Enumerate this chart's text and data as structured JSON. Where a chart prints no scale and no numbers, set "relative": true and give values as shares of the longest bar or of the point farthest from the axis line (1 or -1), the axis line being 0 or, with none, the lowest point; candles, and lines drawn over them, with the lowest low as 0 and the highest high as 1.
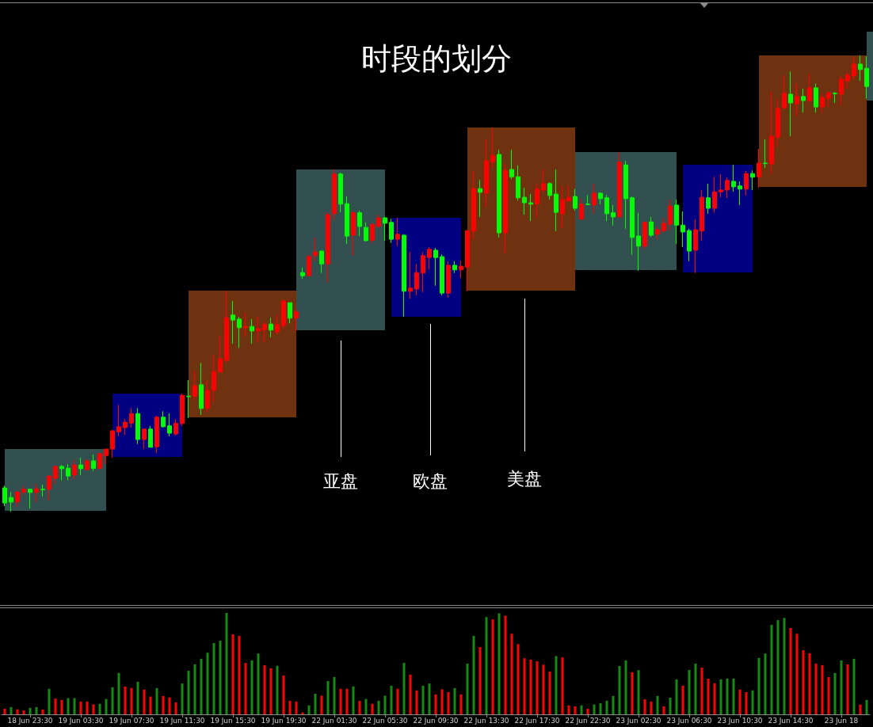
{
  "chart_data": [
    {
      "type": "candlestick",
      "title": "时段的划分",
      "relative": true,
      "tick_labels": false,
      "annotations": [
        "亚盘",
        "欧盘",
        "美盘"
      ],
      "categories": [
        null,
        null,
        null,
        null,
        null,
        null,
        null,
        null,
        null,
        null,
        null,
        null,
        null,
        null,
        null,
        null,
        null,
        null,
        null,
        null,
        null,
        null,
        null,
        null,
        null,
        null,
        null,
        null,
        null,
        null,
        null,
        null,
        null,
        null,
        null,
        null,
        null,
        null,
        null,
        null,
        null,
        null,
        null,
        null,
        null,
        null,
        null,
        null,
        null,
        null,
        null,
        null,
        null,
        null,
        null,
        null,
        null,
        null,
        null,
        null,
        null,
        null,
        null,
        null,
        null,
        null,
        null,
        null,
        null,
        null,
        null,
        null,
        null,
        null,
        null,
        null,
        null,
        null,
        null,
        null,
        null,
        null,
        null,
        null,
        null,
        null,
        null,
        null,
        null,
        null,
        null,
        null,
        null,
        null,
        null,
        null,
        null,
        null,
        null,
        null,
        null,
        null,
        null,
        null,
        null,
        null,
        null,
        null,
        null,
        null,
        null,
        null,
        null,
        null,
        null,
        null,
        null,
        null,
        null,
        null,
        null,
        null,
        null,
        null,
        null,
        null,
        null,
        null,
        null,
        null,
        null,
        null,
        null,
        null,
        null,
        null,
        null
      ],
      "ohlc": [
        [
          0.052,
          0.057,
          0.012,
          0.019
        ],
        [
          0.031,
          0.043,
          0,
          0.021
        ],
        [
          0.021,
          0.043,
          0.01,
          0.043
        ],
        [
          0.043,
          0.056,
          0.036,
          0.049
        ],
        [
          0.049,
          0.049,
          0.007,
          0.042
        ],
        [
          0.042,
          0.061,
          0.021,
          0.05
        ],
        [
          0.049,
          0.059,
          0.033,
          0.048
        ],
        [
          0.049,
          0.08,
          0.024,
          0.078
        ],
        [
          0.073,
          0.101,
          0.061,
          0.099
        ],
        [
          0.099,
          0.102,
          0.068,
          0.094
        ],
        [
          0.095,
          0.104,
          0.069,
          0.078
        ],
        [
          0.08,
          0.113,
          0.071,
          0.102
        ],
        [
          0.102,
          0.118,
          0.08,
          0.094
        ],
        [
          0.092,
          0.115,
          0.09,
          0.111
        ],
        [
          0.111,
          0.125,
          0.089,
          0.095
        ],
        [
          0.095,
          0.128,
          0.092,
          0.127
        ],
        [
          0.123,
          0.137,
          0.104,
          0.137
        ],
        [
          0.137,
          0.179,
          0.118,
          0.177
        ],
        [
          0.175,
          0.234,
          0.165,
          0.186
        ],
        [
          0.184,
          0.203,
          0.168,
          0.196
        ],
        [
          0.194,
          0.227,
          0.184,
          0.215
        ],
        [
          0.215,
          0.227,
          0.148,
          0.158
        ],
        [
          0.158,
          0.181,
          0.137,
          0.181
        ],
        [
          0.181,
          0.188,
          0.141,
          0.141
        ],
        [
          0.142,
          0.21,
          0.128,
          0.207
        ],
        [
          0.207,
          0.22,
          0.184,
          0.186
        ],
        [
          0.188,
          0.215,
          0.165,
          0.172
        ],
        [
          0.17,
          0.203,
          0.167,
          0.194
        ],
        [
          0.193,
          0.259,
          0.188,
          0.255
        ],
        [
          0.253,
          0.288,
          0.205,
          0.252
        ],
        [
          0.253,
          0.309,
          0.245,
          0.276
        ],
        [
          0.278,
          0.326,
          0.212,
          0.226
        ],
        [
          0.227,
          0.288,
          0.219,
          0.266
        ],
        [
          0.266,
          0.344,
          0.241,
          0.307
        ],
        [
          0.306,
          0.385,
          0.306,
          0.335
        ],
        [
          0.332,
          0.484,
          0.326,
          0.425
        ],
        [
          0.431,
          0.462,
          0.368,
          0.42
        ],
        [
          0.422,
          0.427,
          0.359,
          0.403
        ],
        [
          0.403,
          0.436,
          0.384,
          0.406
        ],
        [
          0.406,
          0.422,
          0.368,
          0.396
        ],
        [
          0.396,
          0.427,
          0.372,
          0.401
        ],
        [
          0.399,
          0.417,
          0.372,
          0.41
        ],
        [
          0.411,
          0.425,
          0.382,
          0.398
        ],
        [
          0.394,
          0.431,
          0.387,
          0.41
        ],
        [
          0.408,
          0.464,
          0.401,
          0.462
        ],
        [
          0.458,
          0.458,
          0.413,
          0.424
        ],
        [
          0.424,
          0.444,
          0.396,
          0.438
        ],
        [
          0.524,
          0.535,
          0.51,
          0.517
        ],
        [
          0.517,
          0.563,
          0.516,
          0.559
        ],
        [
          0.561,
          0.601,
          0.549,
          0.569
        ],
        [
          0.571,
          0.573,
          0.523,
          0.543
        ],
        [
          0.543,
          0.656,
          0.502,
          0.651
        ],
        [
          0.653,
          0.75,
          0.639,
          0.74
        ],
        [
          0.74,
          0.743,
          0.656,
          0.674
        ],
        [
          0.675,
          0.691,
          0.587,
          0.604
        ],
        [
          0.606,
          0.66,
          0.561,
          0.655
        ],
        [
          0.655,
          0.66,
          0.604,
          0.625
        ],
        [
          0.623,
          0.634,
          0.592,
          0.594
        ],
        [
          0.595,
          0.63,
          0.589,
          0.63
        ],
        [
          0.625,
          0.651,
          0.622,
          0.644
        ],
        [
          0.644,
          0.646,
          0.594,
          0.632
        ],
        [
          0.634,
          0.642,
          0.589,
          0.597
        ],
        [
          0.597,
          0.644,
          0.582,
          0.608
        ],
        [
          0.606,
          0.608,
          0.427,
          0.483
        ],
        [
          0.483,
          0.569,
          0.467,
          0.49
        ],
        [
          0.488,
          0.543,
          0.474,
          0.524
        ],
        [
          0.523,
          0.569,
          0.481,
          0.561
        ],
        [
          0.557,
          0.58,
          0.53,
          0.575
        ],
        [
          0.573,
          0.578,
          0.495,
          0.557
        ],
        [
          0.559,
          0.564,
          0.474,
          0.479
        ],
        [
          0.479,
          0.549,
          0.469,
          0.54
        ],
        [
          0.54,
          0.549,
          0.523,
          0.53
        ],
        [
          0.53,
          0.55,
          0.512,
          0.538
        ],
        [
          0.536,
          0.616,
          0.483,
          0.616
        ],
        [
          0.615,
          0.747,
          0.597,
          0.708
        ],
        [
          0.708,
          0.727,
          0.646,
          0.7
        ],
        [
          0.698,
          0.816,
          0.668,
          0.769
        ],
        [
          0.767,
          0.842,
          0.753,
          0.781
        ],
        [
          0.783,
          0.793,
          0.601,
          0.611
        ],
        [
          0.611,
          0.762,
          0.566,
          0.748
        ],
        [
          0.75,
          0.793,
          0.729,
          0.734
        ],
        [
          0.734,
          0.759,
          0.682,
          0.688
        ],
        [
          0.689,
          0.71,
          0.651,
          0.677
        ],
        [
          0.677,
          0.696,
          0.637,
          0.674
        ],
        [
          0.674,
          0.719,
          0.644,
          0.707
        ],
        [
          0.705,
          0.75,
          0.701,
          0.719
        ],
        [
          0.719,
          0.722,
          0.684,
          0.693
        ],
        [
          0.696,
          0.75,
          0.615,
          0.656
        ],
        [
          0.653,
          0.714,
          0.622,
          0.684
        ],
        [
          0.681,
          0.715,
          0.681,
          0.689
        ],
        [
          0.691,
          0.707,
          0.66,
          0.665
        ],
        [
          0.641,
          0.686,
          0.641,
          0.674
        ],
        [
          0.674,
          0.694,
          0.672,
          0.673
        ],
        [
          0.672,
          0.719,
          0.653,
          0.698
        ],
        [
          0.698,
          0.7,
          0.674,
          0.686
        ],
        [
          0.688,
          0.694,
          0.637,
          0.653
        ],
        [
          0.655,
          0.672,
          0.627,
          0.646
        ],
        [
          0.646,
          0.788,
          0.646,
          0.766
        ],
        [
          0.76,
          0.769,
          0.62,
          0.686
        ],
        [
          0.688,
          0.691,
          0.563,
          0.601
        ],
        [
          0.604,
          0.655,
          0.528,
          0.582
        ],
        [
          0.582,
          0.635,
          0.576,
          0.634
        ],
        [
          0.635,
          0.646,
          0.602,
          0.606
        ],
        [
          0.608,
          0.625,
          0.597,
          0.618
        ],
        [
          0.616,
          0.644,
          0.611,
          0.632
        ],
        [
          0.63,
          0.684,
          0.616,
          0.67
        ],
        [
          0.672,
          0.684,
          0.587,
          0.628
        ],
        [
          0.628,
          0.658,
          0.58,
          0.613
        ],
        [
          0.616,
          0.62,
          0.549,
          0.571
        ],
        [
          0.573,
          0.641,
          0.523,
          0.618
        ],
        [
          0.615,
          0.705,
          0.594,
          0.689
        ],
        [
          0.688,
          0.719,
          0.653,
          0.665
        ],
        [
          0.665,
          0.734,
          0.655,
          0.701
        ],
        [
          0.701,
          0.74,
          0.689,
          0.705
        ],
        [
          0.705,
          0.733,
          0.688,
          0.726
        ],
        [
          0.724,
          0.76,
          0.701,
          0.712
        ],
        [
          0.714,
          0.724,
          0.672,
          0.707
        ],
        [
          0.707,
          0.747,
          0.693,
          0.741
        ],
        [
          0.741,
          0.748,
          0.705,
          0.733
        ],
        [
          0.734,
          0.795,
          0.71,
          0.764
        ],
        [
          0.764,
          0.816,
          0.753,
          0.763
        ],
        [
          0.762,
          0.92,
          0.741,
          0.823
        ],
        [
          0.821,
          0.905,
          0.799,
          0.884
        ],
        [
          0.885,
          0.957,
          0.882,
          0.917
        ],
        [
          0.915,
          0.965,
          0.823,
          0.896
        ],
        [
          0.894,
          0.939,
          0.866,
          0.91
        ],
        [
          0.91,
          0.927,
          0.875,
          0.901
        ],
        [
          0.901,
          0.96,
          0.898,
          0.929
        ],
        [
          0.929,
          0.938,
          0.875,
          0.887
        ],
        [
          0.887,
          0.917,
          0.875,
          0.908
        ],
        [
          0.906,
          0.92,
          0.887,
          0.918
        ],
        [
          0.917,
          0.92,
          0.896,
          0.916
        ],
        [
          0.915,
          0.955,
          0.891,
          0.948
        ],
        [
          0.944,
          0.964,
          0.927,
          0.957
        ],
        [
          0.955,
          0.997,
          0.946,
          0.981
        ],
        [
          0.981,
          1,
          0.944,
          0.969
        ],
        [
          0.972,
          0.998,
          0.905,
          0.932
        ]
      ],
      "colors": [
        "#00ff00",
        "#00ff00",
        "#ff0000",
        "#ff0000",
        "#00ff00",
        "#ff0000",
        "#00ff00",
        "#ff0000",
        "#ff0000",
        "#00ff00",
        "#00ff00",
        "#ff0000",
        "#00ff00",
        "#ff0000",
        "#00ff00",
        "#ff0000",
        "#ff0000",
        "#ff0000",
        "#ff0000",
        "#ff0000",
        "#ff0000",
        "#00ff00",
        "#ff0000",
        "#00ff00",
        "#ff0000",
        "#00ff00",
        "#00ff00",
        "#ff0000",
        "#ff0000",
        "#00ff00",
        "#ff0000",
        "#00ff00",
        "#ff0000",
        "#ff0000",
        "#ff0000",
        "#ff0000",
        "#00ff00",
        "#00ff00",
        "#ff0000",
        "#00ff00",
        "#ff0000",
        "#ff0000",
        "#00ff00",
        "#ff0000",
        "#ff0000",
        "#00ff00",
        "#ff0000",
        "#00ff00",
        "#ff0000",
        "#ff0000",
        "#00ff00",
        "#ff0000",
        "#ff0000",
        "#00ff00",
        "#00ff00",
        "#ff0000",
        "#00ff00",
        "#00ff00",
        "#ff0000",
        "#ff0000",
        "#00ff00",
        "#00ff00",
        "#ff0000",
        "#00ff00",
        "#ff0000",
        "#ff0000",
        "#ff0000",
        "#ff0000",
        "#00ff00",
        "#00ff00",
        "#ff0000",
        "#00ff00",
        "#ff0000",
        "#ff0000",
        "#ff0000",
        "#00ff00",
        "#ff0000",
        "#ff0000",
        "#00ff00",
        "#ff0000",
        "#00ff00",
        "#00ff00",
        "#00ff00",
        "#00ff00",
        "#ff0000",
        "#ff0000",
        "#00ff00",
        "#00ff00",
        "#ff0000",
        "#ff0000",
        "#00ff00",
        "#ff0000",
        "#00ff00",
        "#ff0000",
        "#00ff00",
        "#00ff00",
        "#00ff00",
        "#ff0000",
        "#00ff00",
        "#00ff00",
        "#00ff00",
        "#ff0000",
        "#00ff00",
        "#ff0000",
        "#ff0000",
        "#ff0000",
        "#00ff00",
        "#00ff00",
        "#00ff00",
        "#ff0000",
        "#ff0000",
        "#00ff00",
        "#ff0000",
        "#ff0000",
        "#ff0000",
        "#00ff00",
        "#00ff00",
        "#ff0000",
        "#00ff00",
        "#ff0000",
        "#00ff00",
        "#ff0000",
        "#ff0000",
        "#ff0000",
        "#00ff00",
        "#ff0000",
        "#00ff00",
        "#ff0000",
        "#00ff00",
        "#ff0000",
        "#ff0000",
        "#00ff00",
        "#ff0000",
        "#ff0000",
        "#ff0000",
        "#00ff00",
        "#00ff00"
      ]
    },
    {
      "type": "bar",
      "relative": true,
      "tick_labels": "x",
      "categories": [
        null,
        null,
        null,
        null,
        "18 Jun 23:30",
        null,
        null,
        null,
        null,
        null,
        null,
        null,
        "19 Jun 03:30",
        null,
        null,
        null,
        null,
        null,
        null,
        null,
        "19 Jun 07:30",
        null,
        null,
        null,
        null,
        null,
        null,
        null,
        "19 Jun 11:30",
        null,
        null,
        null,
        null,
        null,
        null,
        null,
        "19 Jun 15:30",
        null,
        null,
        null,
        null,
        null,
        null,
        null,
        "19 Jun 19:30",
        null,
        null,
        null,
        null,
        null,
        null,
        null,
        "22 Jun 01:30",
        null,
        null,
        null,
        null,
        null,
        null,
        null,
        "22 Jun 05:30",
        null,
        null,
        null,
        null,
        null,
        null,
        null,
        "22 Jun 09:30",
        null,
        null,
        null,
        null,
        null,
        null,
        null,
        "22 Jun 13:30",
        null,
        null,
        null,
        null,
        null,
        null,
        null,
        "22 Jun 17:30",
        null,
        null,
        null,
        null,
        null,
        null,
        null,
        "22 Jun 22:30",
        null,
        null,
        null,
        null,
        null,
        null,
        null,
        "23 Jun 02:30",
        null,
        null,
        null,
        null,
        null,
        null,
        null,
        "23 Jun 06:30",
        null,
        null,
        null,
        null,
        null,
        null,
        null,
        "23 Jun 10:30",
        null,
        null,
        null,
        null,
        null,
        null,
        null,
        "23 Jun 14:30",
        null,
        null,
        null,
        null,
        null,
        null,
        null,
        "23 Jun 18",
        null,
        null,
        null,
        null
      ],
      "values": [
        0.055,
        0.071,
        0.049,
        0.038,
        0.063,
        0.071,
        0.047,
        0.252,
        0.156,
        0.142,
        0.159,
        0.159,
        0.126,
        0.126,
        0.099,
        0.104,
        0.151,
        0.268,
        0.408,
        0.274,
        0.26,
        0.321,
        0.244,
        0.175,
        0.258,
        0.181,
        0.167,
        0.118,
        0.304,
        0.43,
        0.493,
        0.548,
        0.608,
        0.704,
        0.726,
        1,
        0.789,
        0.773,
        0.507,
        0.532,
        0.6,
        0.485,
        0.455,
        0.479,
        0.384,
        0.134,
        0.126,
        0.019,
        0.088,
        0.203,
        0.184,
        0.329,
        0.367,
        0.252,
        0.252,
        0.274,
        0.134,
        0.151,
        0.104,
        0.134,
        0.184,
        0.282,
        0.252,
        0.507,
        0.392,
        0.236,
        0.282,
        0.304,
        0.197,
        0.247,
        0.219,
        0.258,
        0.197,
        0.501,
        0.773,
        0.663,
        0.959,
        0.937,
        0.997,
        0.973,
        0.795,
        0.693,
        0.553,
        0.54,
        0.523,
        0.49,
        0.422,
        0.575,
        0.562,
        0.088,
        0.079,
        0.088,
        0.055,
        0.096,
        0.11,
        0.134,
        0.181,
        0.477,
        0.532,
        0.416,
        0.436,
        0.148,
        0.126,
        0.181,
        0.079,
        0.164,
        0.345,
        0.282,
        0.438,
        0.501,
        0.46,
        0.351,
        0.307,
        0.345,
        0.353,
        0.353,
        0.244,
        0.219,
        0.236,
        0.556,
        0.6,
        0.882,
        0.929,
        0.951,
        0.852,
        0.795,
        0.633,
        0.603,
        0.501,
        0.485,
        0.367,
        0.408,
        0.532,
        0.493,
        0.548,
        0.096,
        0.142
      ],
      "colors": [
        "#ff0000",
        "#148c14",
        "#ff0000",
        "#ff0000",
        "#148c14",
        "#148c14",
        "#ff0000",
        "#148c14",
        "#ff0000",
        "#ff0000",
        "#148c14",
        "#148c14",
        "#ff0000",
        "#ff0000",
        "#ff0000",
        "#148c14",
        "#148c14",
        "#148c14",
        "#148c14",
        "#ff0000",
        "#ff0000",
        "#148c14",
        "#ff0000",
        "#ff0000",
        "#148c14",
        "#ff0000",
        "#ff0000",
        "#ff0000",
        "#148c14",
        "#148c14",
        "#148c14",
        "#148c14",
        "#148c14",
        "#148c14",
        "#148c14",
        "#148c14",
        "#ff0000",
        "#ff0000",
        "#ff0000",
        "#148c14",
        "#148c14",
        "#ff0000",
        "#ff0000",
        "#148c14",
        "#ff0000",
        "#ff0000",
        "#ff0000",
        "#ff0000",
        "#148c14",
        "#148c14",
        "#ff0000",
        "#148c14",
        "#148c14",
        "#ff0000",
        "#ff0000",
        "#148c14",
        "#ff0000",
        "#148c14",
        "#ff0000",
        "#148c14",
        "#148c14",
        "#148c14",
        "#ff0000",
        "#148c14",
        "#ff0000",
        "#ff0000",
        "#148c14",
        "#148c14",
        "#ff0000",
        "#ff0000",
        "#ff0000",
        "#148c14",
        "#ff0000",
        "#148c14",
        "#148c14",
        "#ff0000",
        "#148c14",
        "#ff0000",
        "#148c14",
        "#ff0000",
        "#ff0000",
        "#ff0000",
        "#ff0000",
        "#ff0000",
        "#ff0000",
        "#ff0000",
        "#ff0000",
        "#148c14",
        "#ff0000",
        "#ff0000",
        "#ff0000",
        "#148c14",
        "#ff0000",
        "#148c14",
        "#148c14",
        "#148c14",
        "#148c14",
        "#148c14",
        "#148c14",
        "#ff0000",
        "#148c14",
        "#ff0000",
        "#ff0000",
        "#148c14",
        "#ff0000",
        "#148c14",
        "#148c14",
        "#ff0000",
        "#148c14",
        "#148c14",
        "#ff0000",
        "#ff0000",
        "#ff0000",
        "#148c14",
        "#148c14",
        "#148c14",
        "#ff0000",
        "#ff0000",
        "#148c14",
        "#148c14",
        "#148c14",
        "#148c14",
        "#148c14",
        "#148c14",
        "#ff0000",
        "#ff0000",
        "#ff0000",
        "#ff0000",
        "#ff0000",
        "#ff0000",
        "#ff0000",
        "#148c14",
        "#148c14",
        "#ff0000",
        "#148c14",
        "#ff0000",
        "#148c14"
      ]
    }
  ]
}
